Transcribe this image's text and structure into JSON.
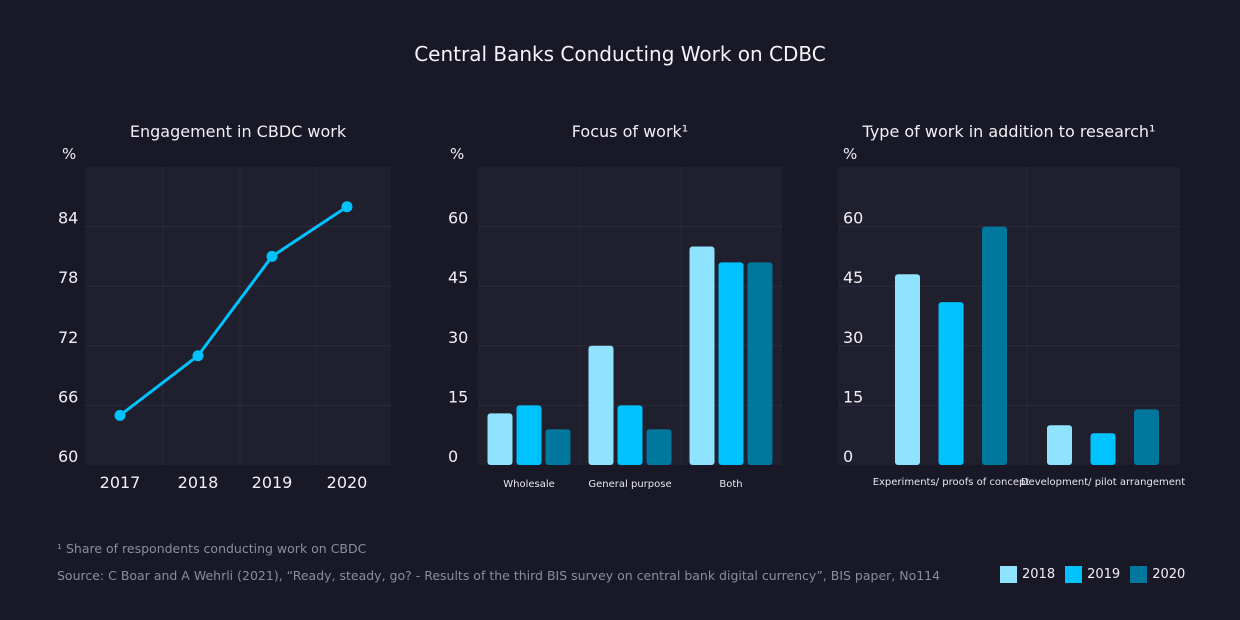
{
  "title": "Central Banks Conducting Work on CDBC",
  "colors": {
    "2018": "#8fe3ff",
    "2019": "#00c2ff",
    "2020": "#00779c",
    "background": "#181826",
    "plot": "#1f1f2e"
  },
  "chart_data": [
    {
      "type": "line",
      "title": "Engagement in CBDC work",
      "ylabel": "%",
      "categories": [
        "2017",
        "2018",
        "2019",
        "2020"
      ],
      "values": [
        65,
        71,
        81,
        86
      ],
      "ylim": [
        60,
        90
      ],
      "yticks": [
        "60",
        "66",
        "72",
        "78",
        "84"
      ],
      "grid": true
    },
    {
      "type": "bar",
      "title": "Focus of work¹",
      "ylabel": "%",
      "categories": [
        "Wholesale",
        "General purpose",
        "Both"
      ],
      "series": [
        {
          "name": "2018",
          "values": [
            13,
            30,
            55
          ]
        },
        {
          "name": "2019",
          "values": [
            15,
            15,
            51
          ]
        },
        {
          "name": "2020",
          "values": [
            9,
            9,
            51
          ]
        }
      ],
      "ylim": [
        0,
        75
      ],
      "yticks": [
        "0",
        "15",
        "30",
        "45",
        "60"
      ],
      "grid": true
    },
    {
      "type": "bar",
      "title": "Type of work in addition to research¹",
      "ylabel": "%",
      "categories": [
        "Experiments/ proofs of concept",
        "Development/ pilot arrangement"
      ],
      "series": [
        {
          "name": "2018",
          "values": [
            48,
            10
          ]
        },
        {
          "name": "2019",
          "values": [
            41,
            8
          ]
        },
        {
          "name": "2020",
          "values": [
            60,
            14
          ]
        }
      ],
      "ylim": [
        0,
        75
      ],
      "yticks": [
        "0",
        "15",
        "30",
        "45",
        "60"
      ],
      "grid": true
    }
  ],
  "legend": {
    "placement": "bottom-right",
    "items": [
      "2018",
      "2019",
      "2020"
    ]
  },
  "footnote": "¹ Share of respondents conducting work on CBDC",
  "source": "Source: C Boar and A Wehrli (2021), “Ready, steady, go? - Results of the third BIS survey on central bank digital currency”, BIS paper, No114"
}
